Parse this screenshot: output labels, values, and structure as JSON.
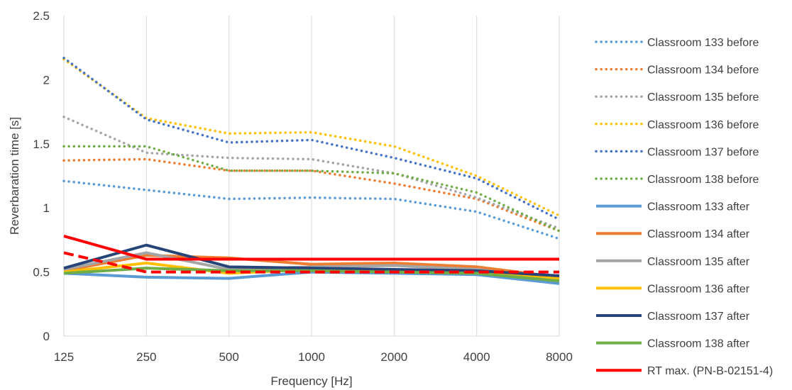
{
  "chart_data": {
    "type": "line",
    "xlabel": "Frequency [Hz]",
    "ylabel": "Reverbaration time [s]",
    "categories": [
      "125",
      "250",
      "500",
      "1000",
      "2000",
      "4000",
      "8000"
    ],
    "ylim": [
      0,
      2.5
    ],
    "yticks": [
      "0",
      "0.5",
      "1",
      "1.5",
      "2",
      "2.5"
    ],
    "grid": "vertical",
    "legend_position": "right",
    "series": [
      {
        "name": "Classroom 133 before",
        "style": "dotted",
        "color": "#5B9BD5",
        "values": [
          1.21,
          1.14,
          1.07,
          1.08,
          1.07,
          0.97,
          0.76
        ]
      },
      {
        "name": "Classroom 134 before",
        "style": "dotted",
        "color": "#ED7D31",
        "values": [
          1.37,
          1.38,
          1.29,
          1.29,
          1.19,
          1.07,
          0.82
        ]
      },
      {
        "name": "Classroom 135 before",
        "style": "dotted",
        "color": "#A5A5A5",
        "values": [
          1.71,
          1.43,
          1.39,
          1.38,
          1.27,
          1.08,
          0.84
        ]
      },
      {
        "name": "Classroom 136 before",
        "style": "dotted",
        "color": "#FFC000",
        "values": [
          2.16,
          1.7,
          1.58,
          1.59,
          1.48,
          1.25,
          0.94
        ]
      },
      {
        "name": "Classroom 137 before",
        "style": "dotted",
        "color": "#4472C4",
        "values": [
          2.17,
          1.69,
          1.51,
          1.53,
          1.39,
          1.23,
          0.91
        ]
      },
      {
        "name": "Classroom 138 before",
        "style": "dotted",
        "color": "#70AD47",
        "values": [
          1.48,
          1.48,
          1.29,
          1.29,
          1.27,
          1.12,
          0.82
        ]
      },
      {
        "name": "Classroom 133 after",
        "style": "solid",
        "color": "#5B9BD5",
        "values": [
          0.49,
          0.46,
          0.45,
          0.5,
          0.49,
          0.48,
          0.41
        ]
      },
      {
        "name": "Classroom 134 after",
        "style": "solid",
        "color": "#ED7D31",
        "values": [
          0.51,
          0.63,
          0.61,
          0.56,
          0.57,
          0.54,
          0.46
        ]
      },
      {
        "name": "Classroom 135 after",
        "style": "solid",
        "color": "#A5A5A5",
        "values": [
          0.52,
          0.65,
          0.52,
          0.54,
          0.55,
          0.52,
          0.44
        ]
      },
      {
        "name": "Classroom 136 after",
        "style": "solid",
        "color": "#FFC000",
        "values": [
          0.5,
          0.57,
          0.49,
          0.52,
          0.51,
          0.5,
          0.45
        ]
      },
      {
        "name": "Classroom 137 after",
        "style": "solid",
        "color": "#264478",
        "values": [
          0.53,
          0.71,
          0.54,
          0.53,
          0.52,
          0.51,
          0.47
        ]
      },
      {
        "name": "Classroom 138 after",
        "style": "solid",
        "color": "#70AD47",
        "values": [
          0.49,
          0.53,
          0.51,
          0.51,
          0.5,
          0.49,
          0.43
        ]
      },
      {
        "name": "RT max. (PN-B-02151-4)",
        "style": "solid",
        "color": "#FF0000",
        "values": [
          0.78,
          0.6,
          0.6,
          0.6,
          0.6,
          0.6,
          0.6
        ]
      },
      {
        "name": "",
        "style": "dashed",
        "color": "#FF0000",
        "values": [
          0.65,
          0.5,
          0.5,
          0.5,
          0.5,
          0.5,
          0.5
        ],
        "legend": false
      }
    ]
  }
}
